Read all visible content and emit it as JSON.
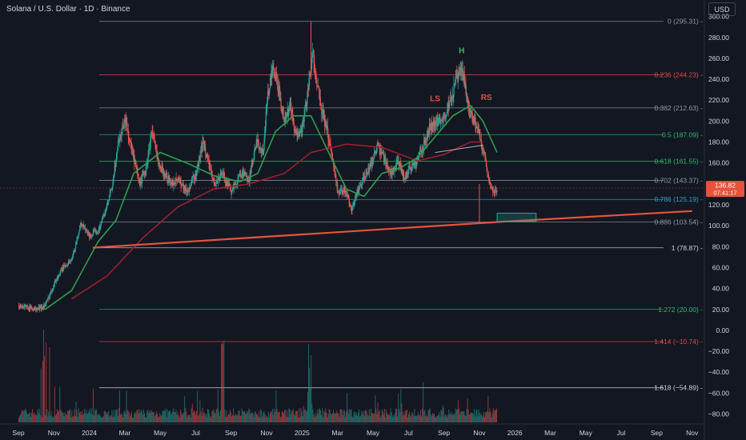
{
  "header": {
    "title": "Solana / U.S. Dollar · 1D · Binance",
    "currency": "USD"
  },
  "colors": {
    "background": "#131722",
    "candle_up": "#26a69a",
    "candle_down": "#ef5350",
    "ma_fast": "#2e9e4f",
    "ma_slow": "#9b1f2e",
    "trendline": "#e5533d",
    "fib_grey": "#9598a1",
    "fib_red": "#e04b4b",
    "fib_green": "#2ebd6b",
    "fib_teal": "#26a69a",
    "fib_blue": "#3aa0c8",
    "pattern_green": "#26a69a",
    "pattern_red": "#e5533d",
    "price_label": "#e5533d"
  },
  "chart_data": {
    "type": "candlestick",
    "title": "Solana / U.S. Dollar · 1D · Binance",
    "ylim": [
      -88,
      302
    ],
    "price_ticks": [
      300,
      280,
      260,
      240,
      220,
      200,
      180,
      160,
      140,
      120,
      100,
      80,
      60,
      40,
      20,
      0,
      -20,
      -40,
      -60,
      -80
    ],
    "price_tick_labels": [
      "300.00",
      "280.00",
      "260.00",
      "240.00",
      "220.00",
      "200.00",
      "180.00",
      "160.00",
      "140.00",
      "120.00",
      "100.00",
      "80.00",
      "60.00",
      "40.00",
      "20.00",
      "0.00",
      "−20.00",
      "−40.00",
      "−60.00",
      "−80.00"
    ],
    "time_labels": [
      {
        "label": "Sep",
        "t": 0
      },
      {
        "label": "Nov",
        "t": 2
      },
      {
        "label": "2024",
        "t": 4
      },
      {
        "label": "Mar",
        "t": 6
      },
      {
        "label": "May",
        "t": 8
      },
      {
        "label": "Jul",
        "t": 10
      },
      {
        "label": "Sep",
        "t": 12
      },
      {
        "label": "Nov",
        "t": 14
      },
      {
        "label": "2025",
        "t": 16
      },
      {
        "label": "Mar",
        "t": 18
      },
      {
        "label": "May",
        "t": 20
      },
      {
        "label": "Jul",
        "t": 22
      },
      {
        "label": "Sep",
        "t": 24
      },
      {
        "label": "Nov",
        "t": 26
      },
      {
        "label": "2026",
        "t": 28
      },
      {
        "label": "Mar",
        "t": 30
      },
      {
        "label": "May",
        "t": 32
      },
      {
        "label": "Jul",
        "t": 34
      },
      {
        "label": "Sep",
        "t": 36
      },
      {
        "label": "Nov",
        "t": 38
      }
    ],
    "price_path": [
      [
        0,
        24
      ],
      [
        0.5,
        22
      ],
      [
        1,
        20
      ],
      [
        1.5,
        24
      ],
      [
        2,
        45
      ],
      [
        2.5,
        60
      ],
      [
        3,
        68
      ],
      [
        3.5,
        102
      ],
      [
        4,
        90
      ],
      [
        4.5,
        96
      ],
      [
        5,
        120
      ],
      [
        5.3,
        140
      ],
      [
        5.6,
        180
      ],
      [
        6,
        202
      ],
      [
        6.4,
        170
      ],
      [
        6.8,
        140
      ],
      [
        7.2,
        155
      ],
      [
        7.5,
        192
      ],
      [
        7.8,
        165
      ],
      [
        8.2,
        150
      ],
      [
        8.6,
        140
      ],
      [
        9,
        145
      ],
      [
        9.5,
        132
      ],
      [
        10,
        150
      ],
      [
        10.4,
        180
      ],
      [
        10.7,
        160
      ],
      [
        11,
        140
      ],
      [
        11.5,
        150
      ],
      [
        12,
        132
      ],
      [
        12.5,
        150
      ],
      [
        13,
        145
      ],
      [
        13.4,
        180
      ],
      [
        13.8,
        170
      ],
      [
        14,
        220
      ],
      [
        14.3,
        250
      ],
      [
        14.6,
        235
      ],
      [
        15,
        200
      ],
      [
        15.3,
        215
      ],
      [
        15.6,
        185
      ],
      [
        16,
        195
      ],
      [
        16.4,
        240
      ],
      [
        16.6,
        265
      ],
      [
        17,
        215
      ],
      [
        17.4,
        190
      ],
      [
        17.8,
        155
      ],
      [
        18,
        130
      ],
      [
        18.4,
        135
      ],
      [
        18.8,
        115
      ],
      [
        19,
        128
      ],
      [
        19.3,
        140
      ],
      [
        19.7,
        152
      ],
      [
        20.2,
        175
      ],
      [
        20.6,
        165
      ],
      [
        21,
        150
      ],
      [
        21.4,
        160
      ],
      [
        21.8,
        145
      ],
      [
        22,
        155
      ],
      [
        22.4,
        160
      ],
      [
        22.8,
        175
      ],
      [
        23.2,
        195
      ],
      [
        23.6,
        200
      ],
      [
        24,
        205
      ],
      [
        24.3,
        215
      ],
      [
        24.6,
        235
      ],
      [
        24.9,
        250
      ],
      [
        25.1,
        240
      ],
      [
        25.4,
        210
      ],
      [
        25.7,
        200
      ],
      [
        26,
        185
      ],
      [
        26.3,
        165
      ],
      [
        26.5,
        145
      ],
      [
        26.8,
        130
      ],
      [
        27,
        137
      ]
    ],
    "ma_fast": [
      [
        1.5,
        20
      ],
      [
        3,
        38
      ],
      [
        4.5,
        85
      ],
      [
        5.5,
        105
      ],
      [
        6.5,
        150
      ],
      [
        8,
        170
      ],
      [
        9.5,
        160
      ],
      [
        11,
        148
      ],
      [
        12.5,
        142
      ],
      [
        13.5,
        150
      ],
      [
        14.5,
        190
      ],
      [
        15.5,
        205
      ],
      [
        16.5,
        205
      ],
      [
        17.5,
        170
      ],
      [
        18.5,
        135
      ],
      [
        19.5,
        128
      ],
      [
        20.5,
        150
      ],
      [
        21.5,
        155
      ],
      [
        22.5,
        165
      ],
      [
        23.5,
        185
      ],
      [
        24.5,
        205
      ],
      [
        25.5,
        215
      ],
      [
        26.2,
        200
      ],
      [
        27,
        170
      ]
    ],
    "ma_slow": [
      [
        3,
        30
      ],
      [
        5,
        52
      ],
      [
        7,
        88
      ],
      [
        9,
        118
      ],
      [
        11,
        135
      ],
      [
        13,
        140
      ],
      [
        15,
        150
      ],
      [
        16.5,
        170
      ],
      [
        18.5,
        178
      ],
      [
        20.5,
        175
      ],
      [
        22.5,
        162
      ],
      [
        24,
        168
      ],
      [
        25.5,
        180
      ],
      [
        26.2,
        180
      ]
    ],
    "neckline": [
      [
        23.5,
        170
      ],
      [
        26.2,
        177
      ]
    ],
    "trendline": [
      [
        4.2,
        79
      ],
      [
        27.5,
        104
      ],
      [
        38,
        114
      ]
    ],
    "wick_high": {
      "t": 16.5,
      "value": 295.31
    },
    "wick_low": {
      "t": 26.0,
      "value": 103.54
    },
    "fib_levels": [
      {
        "label": "0 (295.31)",
        "value": 295.31,
        "color": "#9598a1"
      },
      {
        "label": "0.236 (244.23)",
        "value": 244.23,
        "color": "#e04b4b"
      },
      {
        "label": "0.382 (212.63)",
        "value": 212.63,
        "color": "#9598a1"
      },
      {
        "label": "0.5 (187.09)",
        "value": 187.09,
        "color": "#2ebd6b"
      },
      {
        "label": "0.618 (161.55)",
        "value": 161.55,
        "color": "#2ebd6b"
      },
      {
        "label": "0.702 (143.37)",
        "value": 143.37,
        "color": "#9598a1"
      },
      {
        "label": "0.786 (125.19)",
        "value": 125.19,
        "color": "#3aa0c8"
      },
      {
        "label": "0.886 (103.54)",
        "value": 103.54,
        "color": "#9598a1"
      },
      {
        "label": "1 (78.87)",
        "value": 78.87,
        "color": "#d1d4dc"
      },
      {
        "label": "1.272 (20.00)",
        "value": 20.0,
        "color": "#2ebd6b"
      },
      {
        "label": "1.414 (−10.74)",
        "value": -10.74,
        "color": "#e04b4b"
      },
      {
        "label": "1.618 (−54.89)",
        "value": -54.89,
        "color": "#d1d4dc"
      }
    ],
    "annotations": [
      {
        "text": "H",
        "t": 25.0,
        "value": 265,
        "color": "#2ebd6b"
      },
      {
        "text": "LS",
        "t": 23.5,
        "value": 219,
        "color": "#e5533d"
      },
      {
        "text": "RS",
        "t": 26.4,
        "value": 220,
        "color": "#e5533d"
      }
    ],
    "target_box": {
      "t0": 27.0,
      "t1": 29.2,
      "v0": 104,
      "v1": 112
    },
    "current_price": {
      "value": 136,
      "label_line1": "136.82",
      "label_line2": "07:41:17"
    }
  }
}
